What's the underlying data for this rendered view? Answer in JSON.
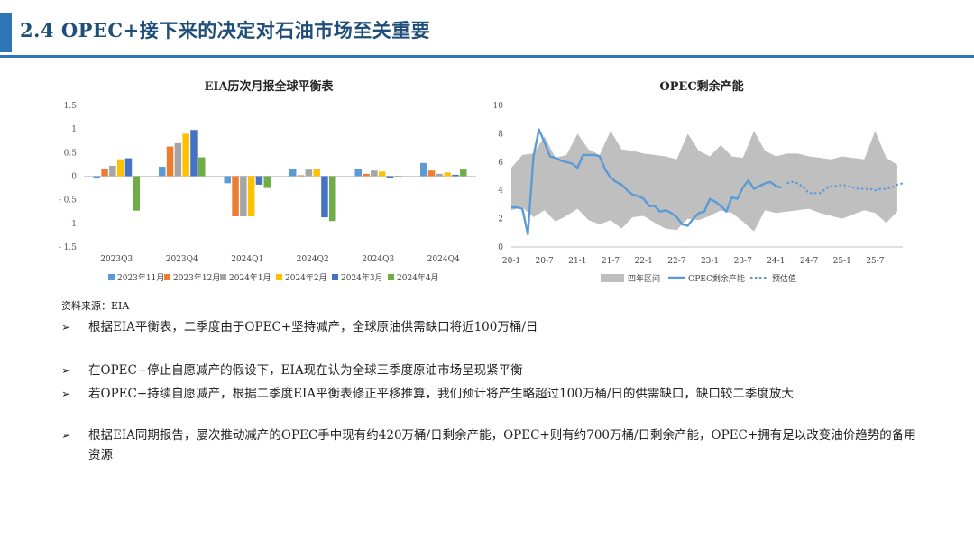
{
  "header": {
    "title": "2.4 OPEC+接下来的决定对石油市场至关重要"
  },
  "source": "资料来源：EIA",
  "bullets": [
    "根据EIA平衡表，二季度由于OPEC+坚持减产，全球原油供需缺口将近100万桶/日",
    "在OPEC+停止自愿减产的假设下，EIA现在认为全球三季度原油市场呈现紧平衡",
    "若OPEC+持续自愿减产，根据二季度EIA平衡表修正平移推算，我们预计将产生略超过100万桶/日的供需缺口，缺口较二季度放大",
    "根据EIA同期报告，屡次推动减产的OPEC手中现有约420万桶/日剩余产能，OPEC+则有约700万桶/日剩余产能，OPEC+拥有足以改变油价趋势的备用资源"
  ],
  "colors": {
    "accent": "#2e75b6",
    "title": "#1f4e79"
  },
  "chart_data": [
    {
      "type": "bar",
      "title": "EIA历次月报全球平衡表",
      "categories": [
        "2023Q3",
        "2023Q4",
        "2024Q1",
        "2024Q2",
        "2024Q3",
        "2024Q4"
      ],
      "ylim": [
        -1.5,
        1.5
      ],
      "yticks": [
        -1.5,
        -1,
        -0.5,
        0,
        0.5,
        1,
        1.5
      ],
      "ytick_labels": [
        "- 1.5",
        "- 1",
        "- 0.5",
        "0",
        "0.5",
        "1",
        "1.5"
      ],
      "grid": false,
      "legend_position": "bottom",
      "series": [
        {
          "name": "2023年11月",
          "color": "#5b9bd5",
          "values": [
            -0.05,
            0.2,
            -0.15,
            0.15,
            0.15,
            0.28
          ]
        },
        {
          "name": "2023年12月",
          "color": "#ed7d31",
          "values": [
            0.15,
            0.63,
            -0.85,
            0.02,
            0.05,
            0.12
          ]
        },
        {
          "name": "2024年1月",
          "color": "#a5a5a5",
          "values": [
            0.22,
            0.7,
            -0.85,
            0.14,
            0.12,
            0.05
          ]
        },
        {
          "name": "2024年2月",
          "color": "#ffc000",
          "values": [
            0.36,
            0.9,
            -0.85,
            0.15,
            0.1,
            0.08
          ]
        },
        {
          "name": "2024年3月",
          "color": "#4472c4",
          "values": [
            0.38,
            0.98,
            -0.18,
            -0.87,
            -0.03,
            0.03
          ]
        },
        {
          "name": "2024年4月",
          "color": "#70ad47",
          "values": [
            -0.73,
            0.4,
            -0.25,
            -0.95,
            0.0,
            0.14
          ]
        }
      ]
    },
    {
      "type": "line",
      "title": "OPEC剩余产能",
      "ylim": [
        0,
        10
      ],
      "yticks": [
        0,
        2,
        4,
        6,
        8,
        10
      ],
      "x_tick_labels": [
        "20-1",
        "20-7",
        "21-1",
        "21-7",
        "22-1",
        "22-7",
        "23-1",
        "23-7",
        "24-1",
        "24-7",
        "25-1",
        "25-7"
      ],
      "x_tick_months": [
        0,
        6,
        12,
        18,
        24,
        30,
        36,
        42,
        48,
        54,
        60,
        66
      ],
      "x_range_months": [
        0,
        71
      ],
      "grid": false,
      "legend_position": "bottom",
      "legend": [
        "四年区间",
        "OPEC剩余产能",
        "预估值"
      ],
      "range_band": {
        "name": "四年区间",
        "color": "#bfbfbf",
        "x_months": [
          0,
          2,
          4,
          6,
          8,
          10,
          12,
          14,
          16,
          18,
          20,
          22,
          24,
          26,
          28,
          30,
          32,
          34,
          36,
          38,
          40,
          42,
          44,
          46,
          48,
          50,
          52,
          54,
          56,
          58,
          60,
          62,
          64,
          66,
          68,
          70
        ],
        "upper": [
          5.6,
          6.5,
          6.6,
          7.8,
          6.3,
          6.5,
          8.0,
          6.9,
          6.5,
          8.2,
          6.9,
          6.8,
          6.6,
          6.5,
          6.4,
          6.2,
          8.0,
          6.8,
          6.4,
          7.2,
          6.4,
          6.3,
          8.2,
          6.8,
          6.4,
          6.6,
          6.6,
          6.4,
          6.3,
          6.2,
          6.4,
          6.3,
          6.2,
          8.2,
          6.3,
          5.8
        ],
        "lower": [
          2.6,
          2.8,
          2.1,
          2.6,
          1.8,
          2.2,
          2.7,
          1.9,
          1.6,
          1.9,
          1.3,
          2.1,
          2.2,
          1.7,
          1.3,
          1.2,
          2.0,
          1.9,
          2.2,
          2.6,
          2.4,
          1.8,
          1.1,
          2.6,
          2.4,
          2.5,
          2.6,
          2.7,
          2.4,
          2.2,
          2.0,
          2.3,
          2.6,
          2.4,
          1.7,
          2.5
        ]
      },
      "series": [
        {
          "name": "OPEC剩余产能",
          "color": "#5b9bd5",
          "style": "solid",
          "x_months": [
            0,
            1,
            2,
            3,
            4,
            5,
            6,
            7,
            8,
            9,
            10,
            11,
            12,
            13,
            14,
            15,
            16,
            17,
            18,
            19,
            20,
            21,
            22,
            23,
            24,
            25,
            26,
            27,
            28,
            29,
            30,
            31,
            32,
            33,
            34,
            35,
            36,
            37,
            38,
            39,
            40,
            41,
            42,
            43,
            44,
            45,
            46,
            47,
            48,
            49
          ],
          "values": [
            2.8,
            2.8,
            2.7,
            0.9,
            6.4,
            8.3,
            7.4,
            6.4,
            6.3,
            6.1,
            6.0,
            5.9,
            5.6,
            6.5,
            6.5,
            6.5,
            6.4,
            5.5,
            4.9,
            4.6,
            4.4,
            4.0,
            3.7,
            3.6,
            3.4,
            2.9,
            2.9,
            2.5,
            2.6,
            2.4,
            2.1,
            1.6,
            1.5,
            2.0,
            2.4,
            2.5,
            3.4,
            3.2,
            2.9,
            2.5,
            3.5,
            3.4,
            4.2,
            4.7,
            4.1,
            4.3,
            4.5,
            4.6,
            4.3,
            4.2
          ]
        },
        {
          "name": "预估值",
          "color": "#5b9bd5",
          "style": "dotted",
          "x_months": [
            50,
            51,
            52,
            53,
            54,
            55,
            56,
            57,
            58,
            59,
            60,
            61,
            62,
            63,
            64,
            65,
            66,
            67,
            68,
            69,
            70,
            71
          ],
          "values": [
            4.5,
            4.6,
            4.5,
            4.2,
            3.8,
            3.8,
            3.8,
            4.1,
            4.3,
            4.3,
            4.4,
            4.3,
            4.2,
            4.1,
            4.1,
            4.1,
            4.0,
            4.1,
            4.1,
            4.2,
            4.4,
            4.5
          ]
        }
      ]
    }
  ]
}
